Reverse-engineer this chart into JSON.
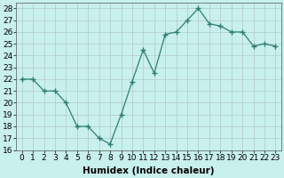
{
  "x": [
    0,
    1,
    2,
    3,
    4,
    5,
    6,
    7,
    8,
    9,
    10,
    11,
    12,
    13,
    14,
    15,
    16,
    17,
    18,
    19,
    20,
    21,
    22,
    23
  ],
  "y": [
    22,
    22,
    21,
    21,
    20,
    18,
    18,
    17,
    16.5,
    19,
    21.8,
    24.5,
    22.5,
    25.8,
    26,
    27,
    28,
    26.7,
    26.5,
    26,
    26,
    24.8,
    25,
    24.8
  ],
  "line_color": "#2d7f72",
  "marker": "+",
  "marker_size": 4,
  "bg_color": "#c8f0ec",
  "grid_color": "#b0c8c8",
  "xlabel": "Humidex (Indice chaleur)",
  "ylim": [
    16,
    28.5
  ],
  "yticks": [
    16,
    17,
    18,
    19,
    20,
    21,
    22,
    23,
    24,
    25,
    26,
    27,
    28
  ],
  "xticks": [
    0,
    1,
    2,
    3,
    4,
    5,
    6,
    7,
    8,
    9,
    10,
    11,
    12,
    13,
    14,
    15,
    16,
    17,
    18,
    19,
    20,
    21,
    22,
    23
  ],
  "xlabel_fontsize": 7.5,
  "tick_fontsize": 6.5,
  "linewidth": 0.9
}
